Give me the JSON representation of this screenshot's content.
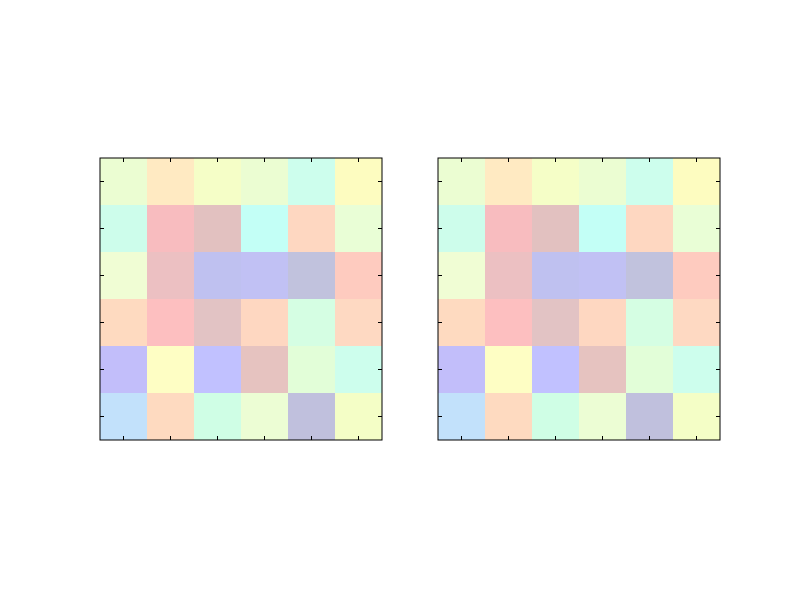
{
  "chart_data": [
    {
      "type": "heatmap",
      "title": "",
      "xlabel": "",
      "ylabel": "",
      "grid": false,
      "rows": 6,
      "cols": 6,
      "cells": [
        [
          "#ebfdd2",
          "#ffeac2",
          "#f5fec7",
          "#ebfdd2",
          "#cdfeed",
          "#fdfcc0"
        ],
        [
          "#cdfdeb",
          "#f8bcbf",
          "#e2c1c0",
          "#c3fff6",
          "#fed7c1",
          "#e9fed6"
        ],
        [
          "#f0fdd4",
          "#ecc0c2",
          "#bfc1f0",
          "#c1c1f4",
          "#c1c2dd",
          "#fecbbf"
        ],
        [
          "#fedac0",
          "#fdbfc0",
          "#e2c3c4",
          "#fed7c1",
          "#d5fee3",
          "#fed9c2"
        ],
        [
          "#c2befa",
          "#fefec4",
          "#c1c1ff",
          "#e6c3c0",
          "#e2fed8",
          "#cdfeed"
        ],
        [
          "#c2e1fb",
          "#fedac0",
          "#cffee5",
          "#ecfdd4",
          "#c0c0dd",
          "#f4fec6"
        ]
      ]
    },
    {
      "type": "heatmap",
      "title": "",
      "xlabel": "",
      "ylabel": "",
      "grid": false,
      "rows": 6,
      "cols": 6,
      "cells": [
        [
          "#ebfdd2",
          "#ffeac2",
          "#f5fec7",
          "#ebfdd2",
          "#cdfeed",
          "#fdfcc0"
        ],
        [
          "#cdfdeb",
          "#f8bcbf",
          "#e2c1c0",
          "#c3fff6",
          "#fed7c1",
          "#e9fed6"
        ],
        [
          "#f0fdd4",
          "#ecc0c2",
          "#bfc1f0",
          "#c1c1f4",
          "#c1c2dd",
          "#fecbbf"
        ],
        [
          "#fedac0",
          "#fdbfc0",
          "#e2c3c4",
          "#fed7c1",
          "#d5fee3",
          "#fed9c2"
        ],
        [
          "#c2befa",
          "#fefec4",
          "#c1c1ff",
          "#e6c3c0",
          "#e2fed8",
          "#cdfeed"
        ],
        [
          "#c2e1fb",
          "#fedac0",
          "#cffee5",
          "#ecfdd4",
          "#c0c0dd",
          "#f4fec6"
        ]
      ]
    }
  ]
}
